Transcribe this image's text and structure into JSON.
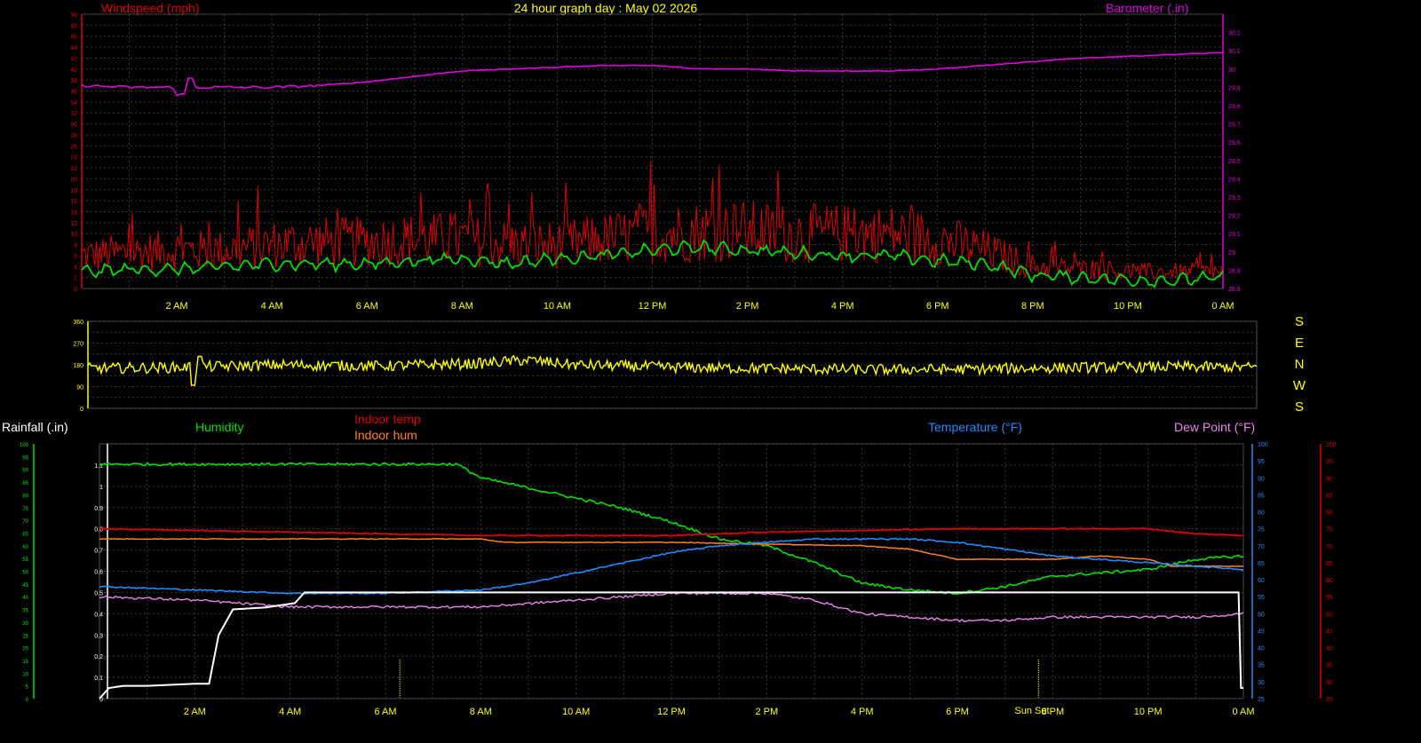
{
  "header": {
    "title": "24 hour graph day : May 02 2026",
    "wind_label": "Windspeed (mph)",
    "baro_label": "Barometer (.in)"
  },
  "lower_labels": {
    "rainfall": "Rainfall (.in)",
    "humidity": "Humidity",
    "indoor_temp": "Indoor temp",
    "indoor_hum": "Indoor hum",
    "temperature": "Temperature (°F)",
    "dewpoint": "Dew Point (°F)",
    "sunset": "Sun Set"
  },
  "compass": [
    "S",
    "E",
    "N",
    "W",
    "S"
  ],
  "colors": {
    "wind": "#e00000",
    "gust_avg": "#00e000",
    "baro": "#e000e0",
    "direction": "#ffff00",
    "rain": "#ffffff",
    "humidity": "#00e000",
    "indoor_temp": "#e00000",
    "indoor_hum": "#ff8020",
    "temperature": "#1e8cff",
    "dewpoint": "#ee82ee",
    "axis_text": "#ffff00"
  },
  "chart_data": [
    {
      "type": "line",
      "title": "24 hour graph day : May 02 2026",
      "x_ticks": [
        "2 AM",
        "4 AM",
        "6 AM",
        "8 AM",
        "10 AM",
        "12 PM",
        "2 PM",
        "4 PM",
        "6 PM",
        "8 PM",
        "10 PM",
        "0 AM"
      ],
      "x_range_hours": [
        0,
        24
      ],
      "y_left": {
        "label": "Windspeed (mph)",
        "range": [
          0,
          50
        ],
        "ticks": [
          "0",
          "2",
          "4",
          "6",
          "8",
          "10",
          "12",
          "14",
          "16",
          "18",
          "20",
          "22",
          "24",
          "26",
          "28",
          "30",
          "32",
          "34",
          "36",
          "38",
          "40",
          "42",
          "44",
          "46",
          "48",
          "50"
        ]
      },
      "y_right": {
        "label": "Barometer (.in)",
        "range": [
          28.8,
          30.3
        ],
        "ticks": [
          "28.8",
          "28.9",
          "29",
          "29.1",
          "29.2",
          "29.3",
          "29.4",
          "29.5",
          "29.6",
          "29.7",
          "29.8",
          "29.9",
          "30",
          "30.1",
          "30.2"
        ]
      },
      "series": [
        {
          "name": "Windspeed (mph)",
          "axis": "left",
          "hours": [
            0,
            1,
            2,
            3,
            4,
            5,
            6,
            7,
            8,
            9,
            10,
            11,
            12,
            13,
            14,
            15,
            16,
            17,
            18,
            19,
            20,
            21,
            22,
            23,
            24
          ],
          "values": [
            6,
            6.5,
            7,
            7,
            8,
            8.5,
            8.5,
            9,
            9,
            8,
            8,
            9,
            10,
            10.5,
            10.5,
            10,
            10,
            10,
            9,
            7,
            4,
            3.5,
            3,
            3,
            3
          ]
        },
        {
          "name": "Average speed",
          "axis": "left",
          "hours": [
            0,
            1,
            2,
            3,
            4,
            5,
            6,
            7,
            8,
            9,
            10,
            11,
            12,
            13,
            14,
            15,
            16,
            17,
            18,
            19,
            20,
            21,
            22,
            23,
            24
          ],
          "values": [
            3,
            3.5,
            3.5,
            4,
            4.5,
            4.5,
            4.5,
            5,
            5.5,
            4.5,
            5.5,
            6,
            7,
            7.5,
            7,
            6.5,
            6,
            6,
            5,
            4.5,
            2.5,
            2,
            1.5,
            1.5,
            2
          ]
        },
        {
          "name": "Barometer (.in)",
          "axis": "right",
          "hours": [
            0,
            1,
            2,
            3,
            4,
            5,
            6,
            7,
            8,
            9,
            10,
            11,
            12,
            13,
            14,
            15,
            16,
            17,
            18,
            19,
            20,
            21,
            22,
            23,
            24
          ],
          "values": [
            29.91,
            29.9,
            29.9,
            29.9,
            29.9,
            29.91,
            29.93,
            29.96,
            29.99,
            30.0,
            30.01,
            30.02,
            30.02,
            30.0,
            30.0,
            29.99,
            29.99,
            29.99,
            30.0,
            30.02,
            30.04,
            30.06,
            30.07,
            30.08,
            30.09
          ]
        }
      ]
    },
    {
      "type": "line",
      "title": "",
      "y_range": [
        0,
        360
      ],
      "y_ticks": [
        "0",
        "90",
        "180",
        "270",
        "360"
      ],
      "series": [
        {
          "name": "Wind direction",
          "hours": [
            0,
            2,
            4,
            6,
            8,
            9,
            10,
            12,
            14,
            16,
            18,
            20,
            22,
            24
          ],
          "values": [
            165,
            170,
            180,
            175,
            185,
            200,
            180,
            170,
            165,
            160,
            162,
            168,
            172,
            170
          ]
        }
      ]
    },
    {
      "type": "line",
      "title": "",
      "x_ticks": [
        "2 AM",
        "4 AM",
        "6 AM",
        "8 AM",
        "10 AM",
        "12 PM",
        "2 PM",
        "4 PM",
        "6 PM",
        "8 PM",
        "10 PM",
        "0 AM"
      ],
      "y_rain": {
        "label": "Rainfall (.in)",
        "range": [
          0,
          1.2
        ],
        "ticks": [
          "0",
          "0.1",
          "0.2",
          "0.3",
          "0.4",
          "0.5",
          "0.6",
          "0.7",
          "0.8",
          "0.9",
          "1",
          "1.1"
        ]
      },
      "y_green_left": {
        "range": [
          0,
          40
        ],
        "ticks": [
          "0",
          "5",
          "10",
          "15",
          "20",
          "25",
          "30",
          "35",
          "40",
          "45",
          "50",
          "55",
          "60",
          "65",
          "70",
          "75",
          "80",
          "85",
          "90",
          "95",
          "100"
        ]
      },
      "y_temp": {
        "label": "Temperature (°F)",
        "range": [
          25,
          100
        ],
        "ticks": [
          "25",
          "30",
          "35",
          "40",
          "45",
          "50",
          "55",
          "60",
          "65",
          "70",
          "75",
          "80",
          "85",
          "90",
          "95",
          "100"
        ]
      },
      "y_red_right": {
        "range": [
          25,
          100
        ],
        "ticks": [
          "25",
          "30",
          "35",
          "40",
          "45",
          "50",
          "55",
          "60",
          "65",
          "70",
          "75",
          "80",
          "85",
          "90",
          "95",
          "100"
        ]
      },
      "series": [
        {
          "name": "Rainfall (.in)",
          "axis": "rain",
          "hours": [
            0,
            0.2,
            0.5,
            1,
            2,
            2.3,
            2.5,
            2.8,
            3.5,
            4.1,
            4.3,
            23.9,
            23.95,
            24
          ],
          "values": [
            0,
            0.05,
            0.06,
            0.06,
            0.07,
            0.07,
            0.3,
            0.42,
            0.43,
            0.45,
            0.5,
            0.5,
            0.05,
            0.05
          ]
        },
        {
          "name": "Humidity",
          "axis": "temp",
          "hours": [
            0,
            7.5,
            8,
            9,
            10,
            11,
            12,
            13,
            14,
            15,
            16,
            17,
            18,
            19,
            20,
            21,
            22,
            23,
            24
          ],
          "values": [
            94,
            94,
            90,
            87,
            84,
            81,
            77,
            72,
            70,
            65,
            59,
            57,
            56,
            58,
            61,
            62,
            63,
            66,
            67
          ]
        },
        {
          "name": "Indoor temp",
          "axis": "temp",
          "hours": [
            0,
            2,
            4,
            6,
            8,
            10,
            12,
            14,
            16,
            18,
            20,
            22,
            23,
            24
          ],
          "values": [
            75,
            74.5,
            74,
            73.5,
            73,
            73,
            73,
            74,
            74.5,
            75,
            75,
            75,
            73.5,
            73
          ]
        },
        {
          "name": "Indoor hum",
          "axis": "temp",
          "hours": [
            0,
            4,
            8,
            8.5,
            10,
            11,
            12,
            16,
            17,
            18,
            19,
            20,
            21,
            22,
            22.5,
            24
          ],
          "values": [
            72,
            72,
            72,
            71,
            71,
            71,
            71,
            70,
            69,
            66,
            66,
            66,
            67,
            66,
            64,
            64
          ]
        },
        {
          "name": "Temperature (°F)",
          "axis": "temp",
          "hours": [
            0,
            2,
            4,
            6,
            8,
            9,
            10,
            11,
            12,
            13,
            14,
            15,
            16,
            17,
            18,
            19,
            20,
            21,
            22,
            23,
            24
          ],
          "values": [
            58,
            57,
            56,
            56,
            57,
            59,
            62,
            65,
            68,
            70,
            71,
            72,
            72,
            72,
            71,
            69,
            67,
            66,
            65,
            64,
            63
          ]
        },
        {
          "name": "Dew Point (°F)",
          "axis": "temp",
          "hours": [
            0,
            2,
            4,
            6,
            8,
            9,
            10,
            11,
            12,
            13,
            14,
            15,
            16,
            17,
            18,
            19,
            20,
            21,
            22,
            23,
            24
          ],
          "values": [
            55,
            54,
            52,
            52,
            52,
            53,
            54,
            55,
            56,
            56,
            56,
            54,
            50,
            49,
            48,
            48,
            49,
            49,
            49,
            49,
            50
          ]
        }
      ]
    }
  ]
}
